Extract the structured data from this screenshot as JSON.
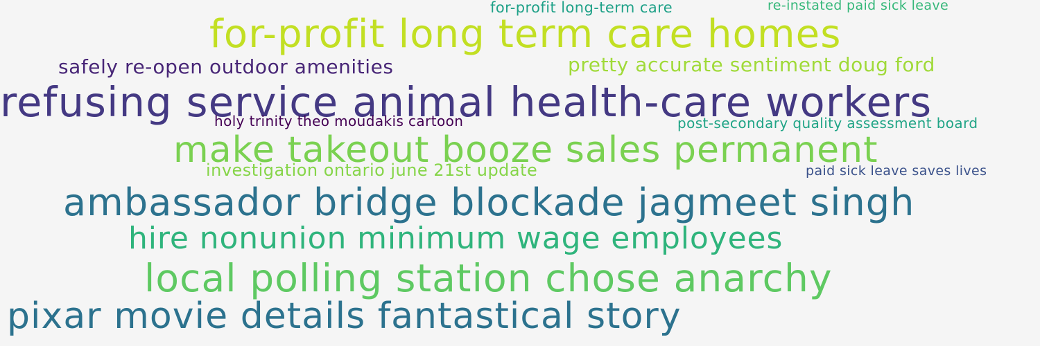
{
  "word_cloud": {
    "phrases": [
      {
        "text": "for-profit long term care homes",
        "color": "#c2df23"
      },
      {
        "text": "refusing service animal health-care workers",
        "color": "#443983"
      },
      {
        "text": "make takeout booze sales permanent",
        "color": "#7ad151"
      },
      {
        "text": "ambassador bridge blockade jagmeet singh",
        "color": "#2c728e"
      },
      {
        "text": "local polling station chose anarchy",
        "color": "#5ec962"
      },
      {
        "text": "pixar movie details fantastical story",
        "color": "#2c728e"
      },
      {
        "text": "hire nonunion minimum wage employees",
        "color": "#2fb47c"
      },
      {
        "text": "safely re-open outdoor amenities",
        "color": "#482677"
      },
      {
        "text": "pretty accurate sentiment doug ford",
        "color": "#a0da39"
      },
      {
        "text": "investigation ontario june 21st update",
        "color": "#86d549"
      },
      {
        "text": "holy trinity theo moudakis cartoon",
        "color": "#440154"
      },
      {
        "text": "post-secondary quality assessment board",
        "color": "#20a486"
      },
      {
        "text": "for-profit long-term care",
        "color": "#1fa188"
      },
      {
        "text": "re-instated paid sick leave",
        "color": "#35b779"
      },
      {
        "text": "paid sick leave saves lives",
        "color": "#3b528b"
      }
    ]
  }
}
